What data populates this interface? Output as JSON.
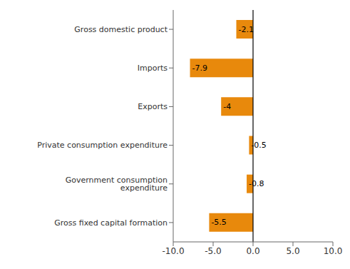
{
  "chart_data": {
    "type": "bar",
    "orientation": "horizontal",
    "categories": [
      "Gross domestic product",
      "Imports",
      "Exports",
      "Private consumption expenditure",
      "Government consumption expenditure",
      "Gross fixed capital formation"
    ],
    "values": [
      -2.1,
      -7.9,
      -4.0,
      -0.5,
      -0.8,
      -5.5
    ],
    "color": "#E8890C",
    "xlim": [
      -10.0,
      10.0
    ],
    "xticks": [
      {
        "value": -10.0,
        "label": "-10.0"
      },
      {
        "value": -5.0,
        "label": "-5.0"
      },
      {
        "value": 0.0,
        "label": "0.0"
      },
      {
        "value": 5.0,
        "label": "5.0"
      },
      {
        "value": 10.0,
        "label": "10.0"
      }
    ],
    "data_labels": true
  }
}
